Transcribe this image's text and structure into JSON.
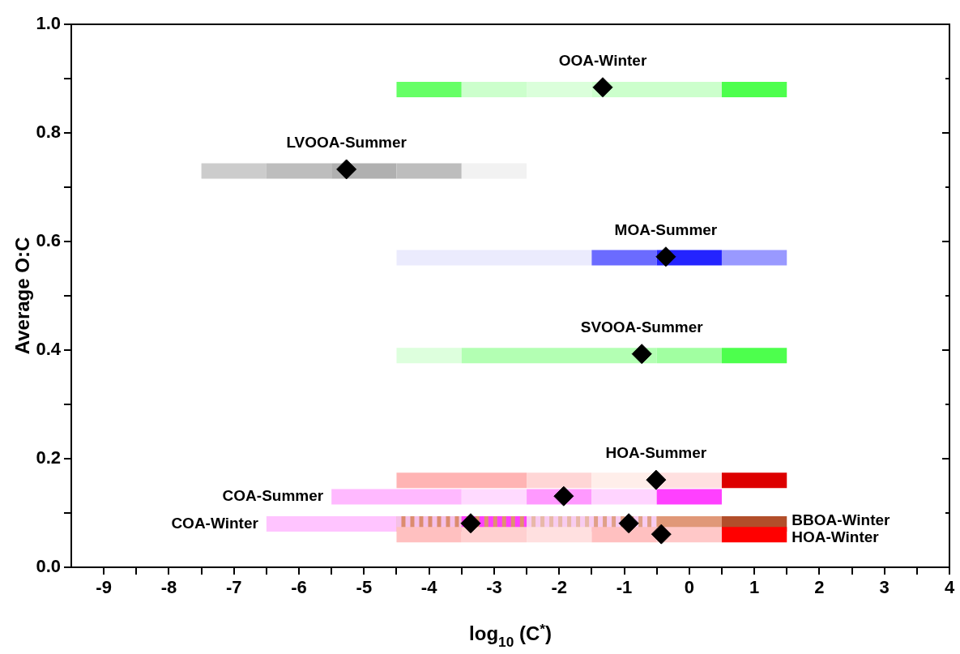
{
  "chart_data": {
    "type": "line",
    "xlabel": "log$_{10}$ (C$^{*}$)",
    "ylabel": "Average O:C",
    "xlim": [
      -9.5,
      4
    ],
    "ylim": [
      0,
      1
    ],
    "xticks": [
      -9,
      {
        "value": -8.5,
        "label": null
      },
      -8,
      {
        "value": -7.5,
        "label": null
      },
      -7,
      {
        "value": -6.5,
        "label": null
      },
      -6,
      {
        "value": -5.5,
        "label": null
      },
      -5,
      {
        "value": -4.5,
        "label": null
      },
      -4,
      {
        "value": -3.5,
        "label": null
      },
      -3,
      {
        "value": -2.5,
        "label": null
      },
      -2,
      {
        "value": -1.5,
        "label": null
      },
      -1,
      {
        "value": -0.5,
        "label": null
      },
      0,
      {
        "value": 0.5,
        "label": null
      },
      1,
      {
        "value": 1.5,
        "label": null
      },
      2,
      {
        "value": 2.5,
        "label": null
      },
      3,
      {
        "value": 3.5,
        "label": null
      },
      4
    ],
    "yticks": [
      {
        "value": 0,
        "label": "0.0"
      },
      {
        "value": 0.1,
        "label": null
      },
      0.2,
      {
        "value": 0.3,
        "label": null
      },
      0.4,
      {
        "value": 0.5,
        "label": null
      },
      0.6,
      {
        "value": 0.7,
        "label": null
      },
      0.8,
      {
        "value": 0.9,
        "label": null
      },
      {
        "value": 1,
        "label": "1.0"
      }
    ],
    "grid": false,
    "legend": false,
    "series": [
      {
        "x": [
          -4.5,
          -3.5
        ],
        "values": [
          0.88,
          0.88
        ],
        "color": "#66ff66"
      },
      {
        "x": [
          -3.5,
          -2.5
        ],
        "values": [
          0.88,
          0.88
        ],
        "color": "#ccffcc"
      },
      {
        "x": [
          -2.5,
          -1.5
        ],
        "values": [
          0.88,
          0.88
        ],
        "color": "#dbffdb"
      },
      {
        "x": [
          -1.5,
          0.5
        ],
        "values": [
          0.88,
          0.88
        ],
        "color": "#ccffcc"
      },
      {
        "x": [
          0.5,
          1.5
        ],
        "values": [
          0.88,
          0.88
        ],
        "color": "#4dff4d"
      },
      {
        "x": [
          -7.5,
          -6.5
        ],
        "values": [
          0.73,
          0.73
        ],
        "color": "#cccccc"
      },
      {
        "x": [
          -6.5,
          -5.5
        ],
        "values": [
          0.73,
          0.73
        ],
        "color": "#bdbdbd"
      },
      {
        "x": [
          -5.5,
          -4.5
        ],
        "values": [
          0.73,
          0.73
        ],
        "color": "#b0b0b0"
      },
      {
        "x": [
          -4.5,
          -3.5
        ],
        "values": [
          0.73,
          0.73
        ],
        "color": "#bdbdbd"
      },
      {
        "x": [
          -3.5,
          -2.5
        ],
        "values": [
          0.73,
          0.73
        ],
        "color": "#f2f2f2"
      },
      {
        "x": [
          -4.5,
          -1.5
        ],
        "values": [
          0.57,
          0.57
        ],
        "color": "#ebebfd"
      },
      {
        "x": [
          -1.5,
          -0.5
        ],
        "values": [
          0.57,
          0.57
        ],
        "color": "#6b6bff"
      },
      {
        "x": [
          -0.5,
          0.5
        ],
        "values": [
          0.57,
          0.57
        ],
        "color": "#2424ff"
      },
      {
        "x": [
          0.5,
          1.5
        ],
        "values": [
          0.57,
          0.57
        ],
        "color": "#9999ff"
      },
      {
        "x": [
          -4.5,
          -3.5
        ],
        "values": [
          0.39,
          0.39
        ],
        "color": "#ddffdd"
      },
      {
        "x": [
          -3.5,
          -0.5
        ],
        "values": [
          0.39,
          0.39
        ],
        "color": "#b3ffb3"
      },
      {
        "x": [
          -0.5,
          0.5
        ],
        "values": [
          0.39,
          0.39
        ],
        "color": "#a1ffa1"
      },
      {
        "x": [
          0.5,
          1.5
        ],
        "values": [
          0.39,
          0.39
        ],
        "color": "#4dff4d"
      },
      {
        "x": [
          -4.5,
          -2.5
        ],
        "values": [
          0.16,
          0.16
        ],
        "color": "#ffb4b4"
      },
      {
        "x": [
          -2.5,
          -1.5
        ],
        "values": [
          0.16,
          0.16
        ],
        "color": "#ffd6d6"
      },
      {
        "x": [
          -1.5,
          -0.5
        ],
        "values": [
          0.16,
          0.16
        ],
        "color": "#ffeeea"
      },
      {
        "x": [
          -0.5,
          0.5
        ],
        "values": [
          0.16,
          0.16
        ],
        "color": "#ffe0e0"
      },
      {
        "x": [
          0.5,
          1.5
        ],
        "values": [
          0.16,
          0.16
        ],
        "color": "#dd0000"
      },
      {
        "x": [
          -5.5,
          -3.5
        ],
        "values": [
          0.13,
          0.13
        ],
        "color": "#ffb9ff"
      },
      {
        "x": [
          -3.5,
          -2.5
        ],
        "values": [
          0.13,
          0.13
        ],
        "color": "#ffdaff"
      },
      {
        "x": [
          -2.5,
          -1.5
        ],
        "values": [
          0.13,
          0.13
        ],
        "color": "#ff99ff"
      },
      {
        "x": [
          -1.5,
          -0.5
        ],
        "values": [
          0.13,
          0.13
        ],
        "color": "#ffd4ff"
      },
      {
        "x": [
          -0.5,
          0.5
        ],
        "values": [
          0.13,
          0.13
        ],
        "color": "#ff40ff"
      },
      {
        "x": [
          -4.5,
          -3.5
        ],
        "values": [
          0.08,
          0.08
        ],
        "color": "#dc8c6e"
      },
      {
        "x": [
          -3.5,
          -2.5
        ],
        "values": [
          0.08,
          0.08
        ],
        "color": "#e09070"
      },
      {
        "x": [
          -2.5,
          -1.5
        ],
        "values": [
          0.08,
          0.08
        ],
        "color": "#e8b8a8"
      },
      {
        "x": [
          -1.5,
          -0.5
        ],
        "values": [
          0.08,
          0.08
        ],
        "color": "#e0a088"
      },
      {
        "x": [
          -0.5,
          0.5
        ],
        "values": [
          0.08,
          0.08
        ],
        "color": "#e09878"
      },
      {
        "x": [
          0.5,
          1.5
        ],
        "values": [
          0.08,
          0.08
        ],
        "color": "#b24e2a"
      },
      {
        "x": [
          -6.5,
          -4.5
        ],
        "values": [
          0.08,
          0.08
        ],
        "color": "#ffc4ff"
      },
      {
        "x": [
          -4.5,
          -3.5
        ],
        "values": [
          0.08,
          0.08
        ],
        "color": "#f5c0e8",
        "line_style": "dashed"
      },
      {
        "x": [
          -3.5,
          -2.5
        ],
        "values": [
          0.08,
          0.08
        ],
        "color": "#ff40ff",
        "line_style": "dashed"
      },
      {
        "x": [
          -2.5,
          -0.5
        ],
        "values": [
          0.08,
          0.08
        ],
        "color": "#f8ccf0",
        "line_style": "dashed"
      },
      {
        "x": [
          -4.5,
          -3.5
        ],
        "values": [
          0.06,
          0.06
        ],
        "color": "#ffc0c0"
      },
      {
        "x": [
          -3.5,
          -2.5
        ],
        "values": [
          0.06,
          0.06
        ],
        "color": "#ffd0d0"
      },
      {
        "x": [
          -2.5,
          -1.5
        ],
        "values": [
          0.06,
          0.06
        ],
        "color": "#ffe0e0"
      },
      {
        "x": [
          -1.5,
          -0.5
        ],
        "values": [
          0.06,
          0.06
        ],
        "color": "#ffc0c0"
      },
      {
        "x": [
          -0.5,
          0.5
        ],
        "values": [
          0.06,
          0.06
        ],
        "color": "#ffc8c8"
      },
      {
        "x": [
          0.5,
          1.5
        ],
        "values": [
          0.06,
          0.06
        ],
        "color": "#ff0000"
      },
      {
        "type": "scatter",
        "marker": "diamond",
        "color": "#000000",
        "x": [
          -1.33,
          -5.27,
          -0.36,
          -0.73,
          -0.51,
          -1.93,
          -3.36,
          -0.93,
          -0.43
        ],
        "values": [
          0.884,
          0.733,
          0.572,
          0.393,
          0.161,
          0.131,
          0.081,
          0.081,
          0.061
        ]
      }
    ],
    "annotations": [
      {
        "text": "OOA-Winter",
        "x": -1.33,
        "y": 0.884
      },
      {
        "text": "LVOOA-Summer",
        "x": -5.27,
        "y": 0.733
      },
      {
        "text": "MOA-Summer",
        "x": -0.36,
        "y": 0.572
      },
      {
        "text": "SVOOA-Summer",
        "x": -0.73,
        "y": 0.393
      },
      {
        "text": "HOA-Summer",
        "x": -0.51,
        "y": 0.161
      },
      {
        "text": "COA-Summer",
        "x": -5.5,
        "y": 0.13
      },
      {
        "text": "COA-Winter",
        "x": -6.5,
        "y": 0.08
      },
      "BBOA-Winter",
      "HOA-Winter"
    ]
  }
}
